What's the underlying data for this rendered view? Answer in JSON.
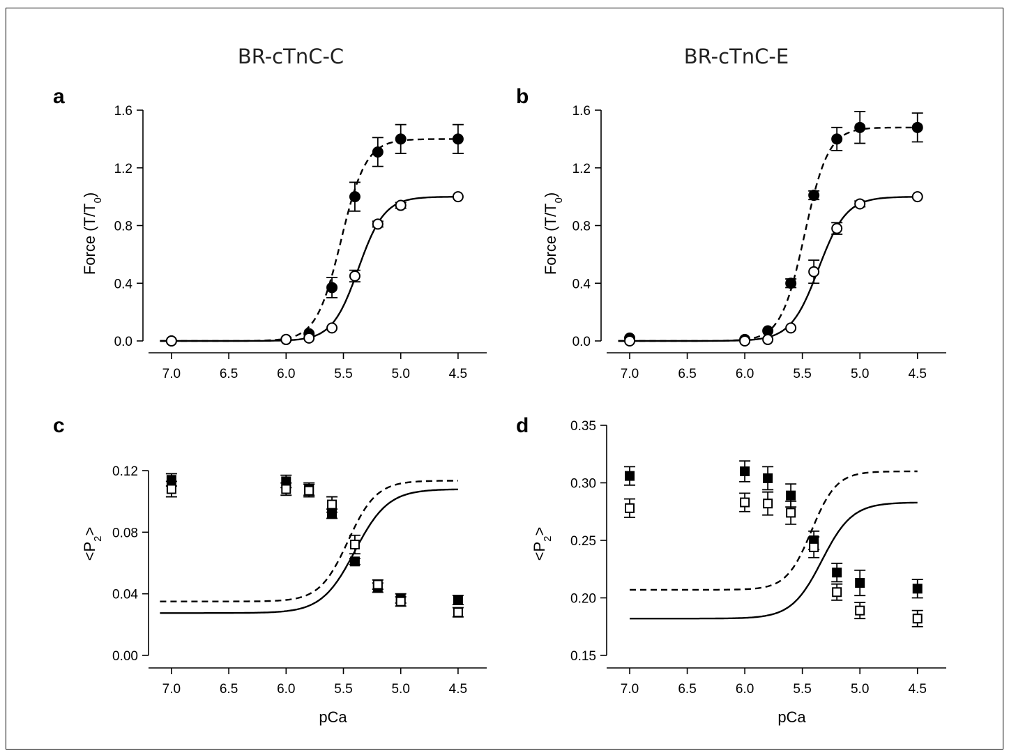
{
  "column_titles": [
    "BR-cTnC-C",
    "BR-cTnC-E"
  ],
  "chart_data": [
    {
      "panel": "a",
      "type": "scatter",
      "ylabel_main": "Force (T/T",
      "ylabel_sub": "0",
      "ylabel_close": ")",
      "xlabel": "",
      "xlim": [
        7.2,
        4.25
      ],
      "ylim": [
        -0.1,
        1.6
      ],
      "xticks": [
        7.0,
        6.5,
        6.0,
        5.5,
        5.0,
        4.5
      ],
      "xtick_labels": [
        "7.0",
        "6.5",
        "6.0",
        "5.5",
        "5.0",
        "4.5"
      ],
      "yticks": [
        0.0,
        0.4,
        0.8,
        1.2,
        1.6
      ],
      "ytick_labels": [
        "0.0",
        "0.4",
        "0.8",
        "1.2",
        "1.6"
      ],
      "series": [
        {
          "marker": "filled-circle",
          "line": "dashed",
          "x": [
            7.0,
            6.0,
            5.8,
            5.6,
            5.4,
            5.2,
            5.0,
            4.5
          ],
          "y": [
            0.0,
            0.01,
            0.05,
            0.37,
            1.0,
            1.31,
            1.4,
            1.4
          ],
          "err": [
            0.0,
            0.0,
            0.0,
            0.07,
            0.1,
            0.1,
            0.1,
            0.1
          ],
          "fit": {
            "bottom": 0.0,
            "top": 1.4,
            "pCa50": 5.52,
            "n": 4.0,
            "from": 7.1,
            "to": 4.5
          }
        },
        {
          "marker": "open-circle",
          "line": "solid",
          "x": [
            7.0,
            6.0,
            5.8,
            5.6,
            5.4,
            5.2,
            5.0,
            4.5
          ],
          "y": [
            0.0,
            0.01,
            0.02,
            0.09,
            0.45,
            0.81,
            0.94,
            1.0
          ],
          "err": [
            0.0,
            0.0,
            0.0,
            0.0,
            0.04,
            0.02,
            0.02,
            0.0
          ],
          "fit": {
            "bottom": 0.0,
            "top": 1.0,
            "pCa50": 5.37,
            "n": 3.8,
            "from": 7.1,
            "to": 4.5
          }
        }
      ]
    },
    {
      "panel": "b",
      "type": "scatter",
      "ylabel_main": "Force (T/T",
      "ylabel_sub": "0",
      "ylabel_close": ")",
      "xlabel": "",
      "xlim": [
        7.2,
        4.25
      ],
      "ylim": [
        -0.1,
        1.6
      ],
      "xticks": [
        7.0,
        6.5,
        6.0,
        5.5,
        5.0,
        4.5
      ],
      "xtick_labels": [
        "7.0",
        "6.5",
        "6.0",
        "5.5",
        "5.0",
        "4.5"
      ],
      "yticks": [
        0.0,
        0.4,
        0.8,
        1.2,
        1.6
      ],
      "ytick_labels": [
        "0.0",
        "0.4",
        "0.8",
        "1.2",
        "1.6"
      ],
      "series": [
        {
          "marker": "filled-circle",
          "line": "dashed",
          "x": [
            7.0,
            6.0,
            5.8,
            5.6,
            5.4,
            5.2,
            5.0,
            4.5
          ],
          "y": [
            0.02,
            0.01,
            0.07,
            0.4,
            1.01,
            1.4,
            1.48,
            1.48
          ],
          "err": [
            0.0,
            0.0,
            0.0,
            0.03,
            0.03,
            0.08,
            0.11,
            0.1
          ],
          "fit": {
            "bottom": 0.0,
            "top": 1.48,
            "pCa50": 5.48,
            "n": 4.2,
            "from": 7.1,
            "to": 4.5
          }
        },
        {
          "marker": "open-circle",
          "line": "solid",
          "x": [
            7.0,
            6.0,
            5.8,
            5.6,
            5.4,
            5.2,
            5.0,
            4.5
          ],
          "y": [
            0.0,
            0.0,
            0.01,
            0.09,
            0.48,
            0.78,
            0.95,
            1.0
          ],
          "err": [
            0.0,
            0.0,
            0.0,
            0.0,
            0.08,
            0.04,
            0.02,
            0.0
          ],
          "fit": {
            "bottom": 0.0,
            "top": 1.0,
            "pCa50": 5.36,
            "n": 3.6,
            "from": 7.1,
            "to": 4.5
          }
        }
      ]
    },
    {
      "panel": "c",
      "type": "scatter",
      "ylabel_main": "<P",
      "ylabel_sub": "2",
      "ylabel_close": ">",
      "xlabel": "pCa",
      "xlim": [
        7.2,
        4.25
      ],
      "ylim": [
        -0.0045,
        0.15
      ],
      "xticks": [
        7.0,
        6.5,
        6.0,
        5.5,
        5.0,
        4.5
      ],
      "xtick_labels": [
        "7.0",
        "6.5",
        "6.0",
        "5.5",
        "5.0",
        "4.5"
      ],
      "yticks": [
        0.0,
        0.04,
        0.08,
        0.12
      ],
      "ytick_labels": [
        "0.00",
        "0.04",
        "0.08",
        "0.12"
      ],
      "series": [
        {
          "marker": "filled-square",
          "line": "dashed",
          "x": [
            7.0,
            6.0,
            5.8,
            5.6,
            5.4,
            5.2,
            5.0,
            4.5
          ],
          "y": [
            0.114,
            0.113,
            0.108,
            0.092,
            0.061,
            0.044,
            0.037,
            0.036
          ],
          "err": [
            0.004,
            0.004,
            0.004,
            0.003,
            0.002,
            0.003,
            0.003,
            0.003
          ],
          "fit": {
            "bottom": 0.035,
            "top": 0.1135,
            "pCa50": 5.46,
            "n": 3.5,
            "from": 7.1,
            "to": 4.5
          }
        },
        {
          "marker": "open-square",
          "line": "solid",
          "x": [
            7.0,
            6.0,
            5.8,
            5.6,
            5.4,
            5.2,
            5.0,
            4.5
          ],
          "y": [
            0.108,
            0.108,
            0.107,
            0.098,
            0.072,
            0.046,
            0.035,
            0.028
          ],
          "err": [
            0.005,
            0.004,
            0.004,
            0.005,
            0.006,
            0.003,
            0.003,
            0.003
          ],
          "fit": {
            "bottom": 0.0275,
            "top": 0.108,
            "pCa50": 5.4,
            "n": 3.0,
            "from": 7.1,
            "to": 4.5
          }
        }
      ]
    },
    {
      "panel": "d",
      "type": "scatter",
      "ylabel_main": "<P",
      "ylabel_sub": "2",
      "ylabel_close": ">",
      "xlabel": "pCa",
      "xlim": [
        7.2,
        4.25
      ],
      "ylim": [
        0.15,
        0.35
      ],
      "xticks": [
        7.0,
        6.5,
        6.0,
        5.5,
        5.0,
        4.5
      ],
      "xtick_labels": [
        "7.0",
        "6.5",
        "6.0",
        "5.5",
        "5.0",
        "4.5"
      ],
      "yticks": [
        0.15,
        0.2,
        0.25,
        0.3,
        0.35
      ],
      "ytick_labels": [
        "0.15",
        "0.20",
        "0.25",
        "0.30",
        "0.35"
      ],
      "series": [
        {
          "marker": "filled-square",
          "line": "dashed",
          "x": [
            7.0,
            6.0,
            5.8,
            5.6,
            5.4,
            5.2,
            5.0,
            4.5
          ],
          "y": [
            0.306,
            0.31,
            0.304,
            0.289,
            0.25,
            0.222,
            0.213,
            0.208
          ],
          "err": [
            0.008,
            0.009,
            0.01,
            0.01,
            0.008,
            0.008,
            0.011,
            0.008
          ],
          "fit": {
            "bottom": 0.207,
            "top": 0.31,
            "pCa50": 5.42,
            "n": 4.0,
            "from": 7.0,
            "to": 4.5
          }
        },
        {
          "marker": "open-square",
          "line": "solid",
          "x": [
            7.0,
            6.0,
            5.8,
            5.6,
            5.4,
            5.2,
            5.0,
            4.5
          ],
          "y": [
            0.278,
            0.283,
            0.282,
            0.274,
            0.244,
            0.205,
            0.189,
            0.182
          ],
          "err": [
            0.008,
            0.008,
            0.01,
            0.01,
            0.009,
            0.007,
            0.007,
            0.007
          ],
          "fit": {
            "bottom": 0.182,
            "top": 0.283,
            "pCa50": 5.33,
            "n": 3.3,
            "from": 7.0,
            "to": 4.5
          }
        }
      ]
    }
  ]
}
